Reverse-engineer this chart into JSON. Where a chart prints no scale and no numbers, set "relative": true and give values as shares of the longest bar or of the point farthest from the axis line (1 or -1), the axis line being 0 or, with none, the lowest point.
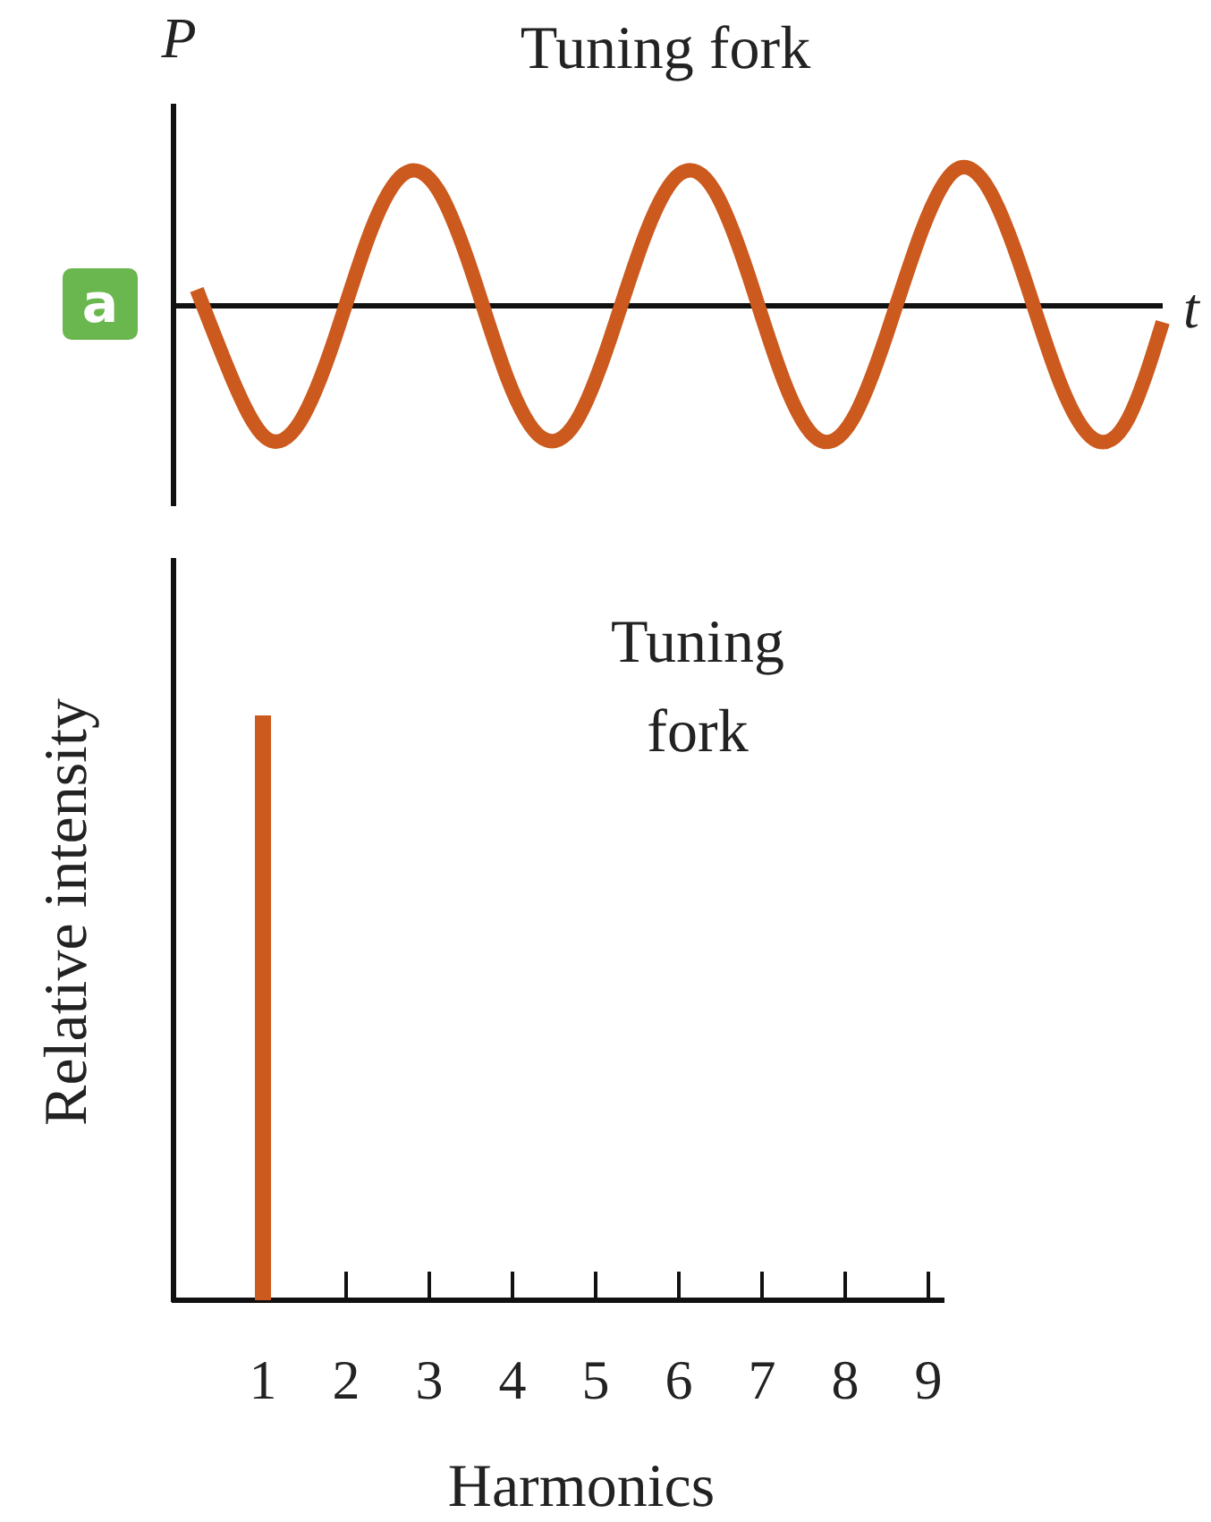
{
  "chart_data": [
    {
      "type": "line",
      "title": "Tuning fork",
      "xlabel": "t",
      "ylabel": "P",
      "relative": true,
      "tick_labels": false,
      "annotations": [
        "a"
      ],
      "categories": [
        null,
        null,
        null,
        null,
        null,
        null,
        null,
        null,
        null,
        null,
        null,
        null,
        null,
        null,
        null,
        null,
        null,
        null,
        null,
        null,
        null,
        null,
        null,
        null,
        null,
        null,
        null,
        null,
        null
      ],
      "series": [
        {
          "color": "#cc5a1e",
          "values": [
            0.12,
            -0.52,
            -0.97,
            -0.85,
            -0.24,
            0.52,
            0.97,
            0.85,
            0.23,
            -0.53,
            -0.97,
            -0.85,
            -0.23,
            0.52,
            0.97,
            0.85,
            0.22,
            -0.54,
            -0.98,
            -0.84,
            -0.21,
            0.54,
            1,
            0.84,
            0.2,
            -0.55,
            -0.98,
            -0.83,
            -0.12
          ]
        }
      ]
    },
    {
      "type": "bar",
      "title": "Tuning fork",
      "xlabel": "Harmonics",
      "ylabel": "Relative intensity",
      "relative": true,
      "tick_labels": "x",
      "categories": [
        "1",
        "2",
        "3",
        "4",
        "5",
        "6",
        "7",
        "8",
        "9"
      ],
      "series": [
        {
          "color": "#cc5a1e",
          "values": [
            1,
            0,
            0,
            0,
            0,
            0,
            0,
            0,
            0
          ]
        }
      ]
    }
  ]
}
